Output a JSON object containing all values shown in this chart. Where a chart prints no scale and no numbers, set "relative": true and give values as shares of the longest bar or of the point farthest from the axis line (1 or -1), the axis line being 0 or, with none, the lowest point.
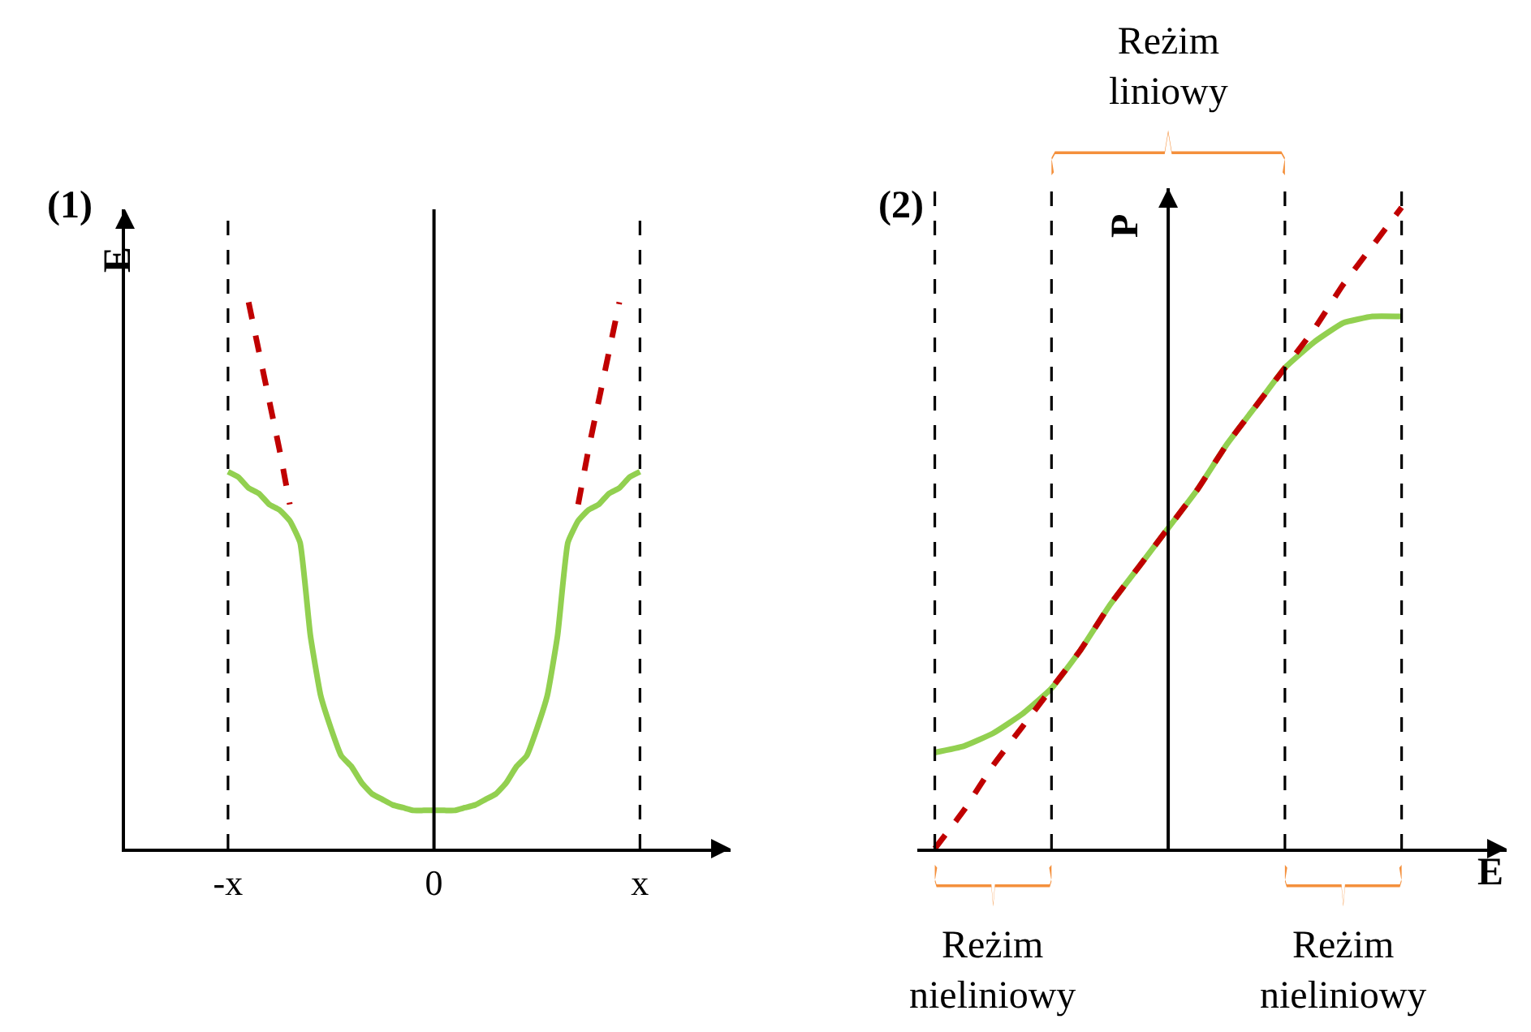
{
  "chart_data": [
    {
      "type": "line",
      "title": "(1)",
      "ylabel": "E",
      "relative": true,
      "categories": [
        "-x",
        null,
        null,
        null,
        null,
        null,
        null,
        null,
        null,
        null,
        null,
        null,
        null,
        null,
        null,
        null,
        null,
        null,
        null,
        null,
        "0",
        null,
        null,
        null,
        null,
        null,
        null,
        null,
        null,
        null,
        null,
        null,
        null,
        null,
        null,
        null,
        null,
        null,
        null,
        null,
        "x"
      ],
      "series": [
        {
          "color": "#92d050",
          "line_style": "solid",
          "values": [
            0.69,
            0.68,
            0.66,
            0.65,
            0.63,
            0.62,
            0.6,
            0.56,
            0.39,
            0.28,
            0.22,
            0.17,
            0.15,
            0.12,
            0.1,
            0.09,
            0.08,
            0.075,
            0.07,
            0.07,
            0.07,
            0.07,
            0.07,
            0.075,
            0.08,
            0.09,
            0.1,
            0.12,
            0.15,
            0.17,
            0.22,
            0.28,
            0.39,
            0.56,
            0.6,
            0.62,
            0.63,
            0.65,
            0.66,
            0.68,
            0.69
          ]
        },
        {
          "color": "#c00000",
          "line_style": "dashed",
          "values": [
            null,
            null,
            1.0,
            0.91,
            0.82,
            0.73,
            0.63,
            null,
            null,
            null,
            null,
            null,
            null,
            null,
            null,
            null,
            null,
            null,
            null,
            null,
            null,
            null,
            null,
            null,
            null,
            null,
            null,
            null,
            null,
            null,
            null,
            null,
            null,
            null,
            null,
            null,
            null,
            null,
            null,
            null,
            null
          ]
        },
        {
          "color": "#c00000",
          "line_style": "dashed",
          "values": [
            null,
            null,
            null,
            null,
            null,
            null,
            null,
            null,
            null,
            null,
            null,
            null,
            null,
            null,
            null,
            null,
            null,
            null,
            null,
            null,
            null,
            null,
            null,
            null,
            null,
            null,
            null,
            null,
            null,
            null,
            null,
            null,
            null,
            null,
            0.63,
            0.73,
            0.82,
            0.91,
            1.0,
            null,
            null
          ]
        }
      ],
      "ref_lines": [
        {
          "axis": "x",
          "value": "-x",
          "color": "#000000",
          "line_style": "dashed"
        },
        {
          "axis": "x",
          "value": "0",
          "color": "#000000",
          "line_style": "solid"
        },
        {
          "axis": "x",
          "value": "x",
          "color": "#000000",
          "line_style": "dashed"
        }
      ]
    },
    {
      "type": "line",
      "title": "(2)",
      "xlabel": "E",
      "ylabel": "P",
      "relative": true,
      "grid": "x",
      "categories": [
        null,
        null,
        null,
        null,
        null,
        null,
        null,
        null,
        null,
        null,
        null,
        null,
        null,
        null,
        null,
        null,
        null
      ],
      "series": [
        {
          "color": "#92d050",
          "line_style": "solid",
          "values": [
            0.15,
            0.16,
            0.18,
            0.21,
            0.25,
            0.31,
            0.38,
            0.44,
            0.5,
            0.56,
            0.63,
            0.69,
            0.75,
            0.79,
            0.82,
            0.83,
            0.83
          ]
        },
        {
          "color": "#c00000",
          "line_style": "dashed",
          "values": [
            0.0,
            0.06,
            0.13,
            0.19,
            0.25,
            0.31,
            0.38,
            0.44,
            0.5,
            0.56,
            0.63,
            0.69,
            0.75,
            0.81,
            0.88,
            0.94,
            1.0
          ]
        }
      ],
      "annotations": [
        "Reżim liniowy",
        "Reżim nieliniowy",
        "Reżim nieliniowy"
      ]
    }
  ]
}
